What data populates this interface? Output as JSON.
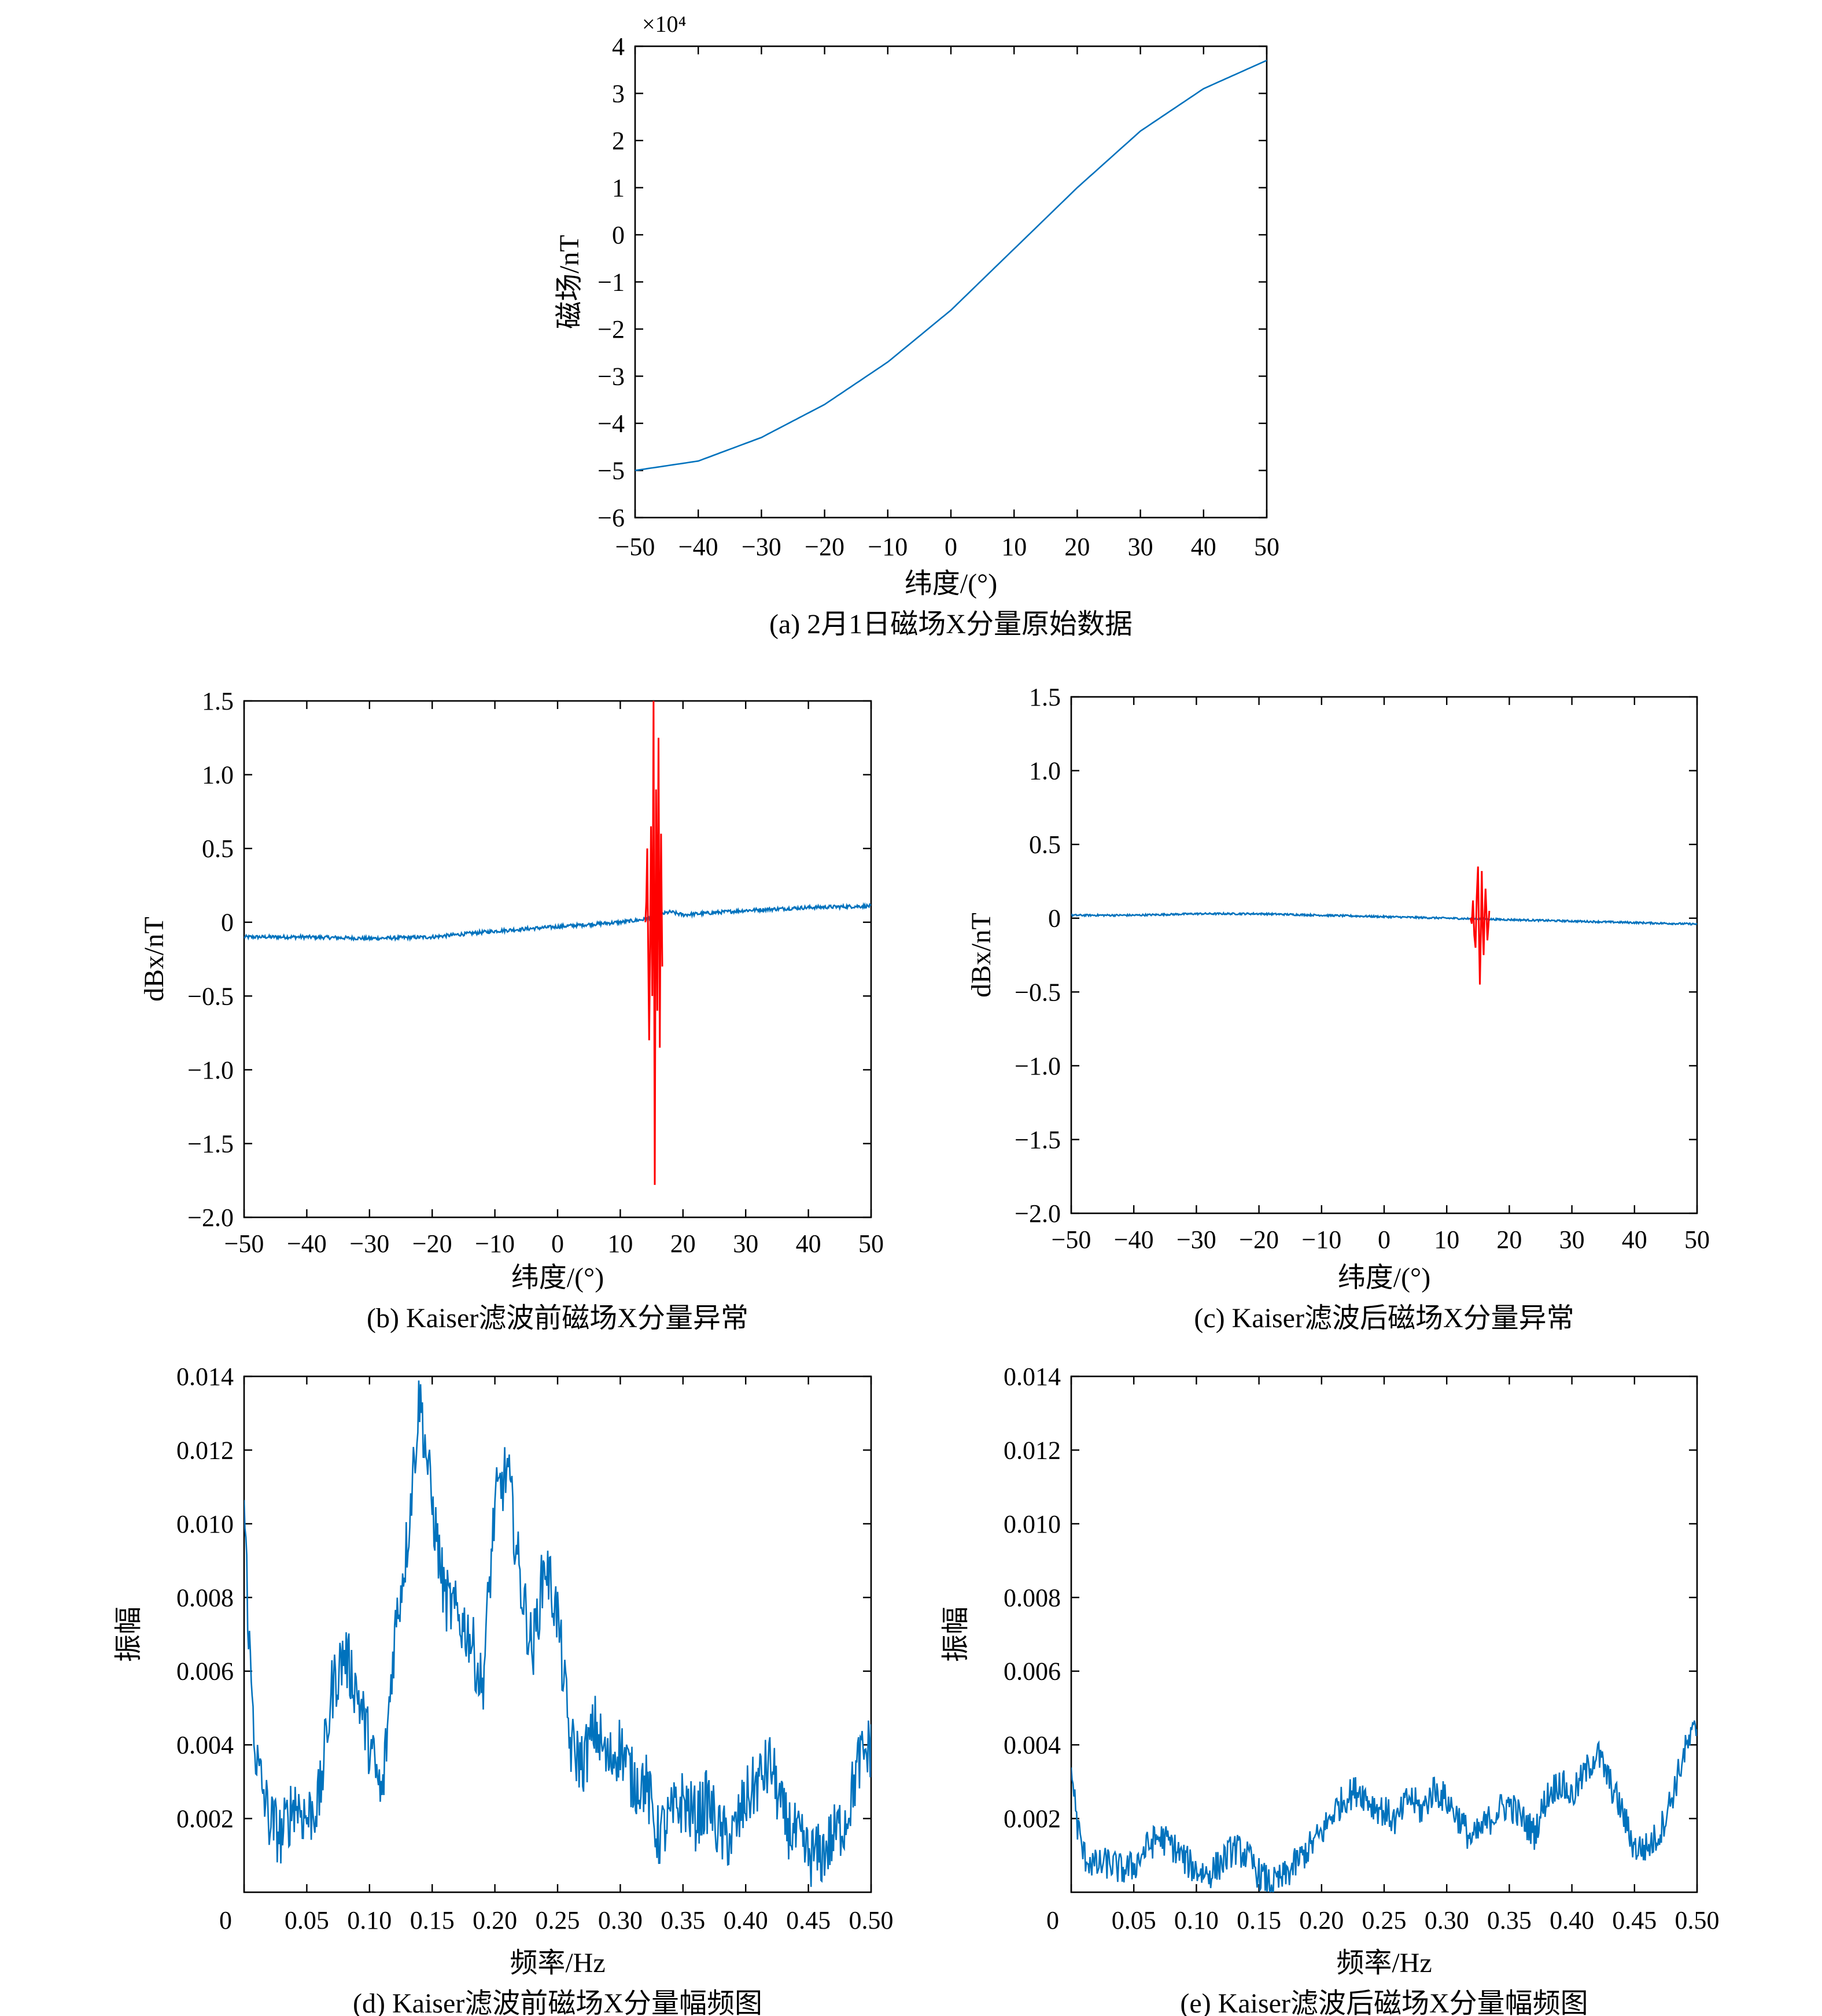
{
  "colors": {
    "series": "#0072BD",
    "anomaly": "#FF0000"
  },
  "chart_data": [
    {
      "id": "a",
      "type": "line",
      "caption": "(a) 2月1日磁场X分量原始数据",
      "xlabel": "纬度/(°)",
      "ylabel": "磁场/nT",
      "multiplier": "×10⁴",
      "xlim": [
        -50,
        50
      ],
      "ylim": [
        -6,
        4
      ],
      "xticks": [
        -50,
        -40,
        -30,
        -20,
        -10,
        0,
        10,
        20,
        30,
        40,
        50
      ],
      "xtick_labels": [
        "−50",
        "−40",
        "−30",
        "−20",
        "−10",
        "0",
        "10",
        "20",
        "30",
        "40",
        "50"
      ],
      "yticks": [
        -6,
        -5,
        -4,
        -3,
        -2,
        -1,
        0,
        1,
        2,
        3,
        4
      ],
      "ytick_labels": [
        "−6",
        "−5",
        "−4",
        "−3",
        "−2",
        "−1",
        "0",
        "1",
        "2",
        "3",
        "4"
      ],
      "series": [
        {
          "x": [
            -50,
            -40,
            -30,
            -20,
            -10,
            0,
            10,
            20,
            30,
            40,
            50
          ],
          "y": [
            -5.0,
            -4.8,
            -4.3,
            -3.6,
            -2.7,
            -1.6,
            -0.3,
            1.0,
            2.2,
            3.1,
            3.7
          ]
        }
      ]
    },
    {
      "id": "b",
      "type": "line",
      "caption": "(b) Kaiser滤波前磁场X分量异常",
      "xlabel": "纬度/(°)",
      "ylabel": "dBx/nT",
      "xlim": [
        -50,
        50
      ],
      "ylim": [
        -2.0,
        1.5
      ],
      "xticks": [
        -50,
        -40,
        -30,
        -20,
        -10,
        0,
        10,
        20,
        30,
        40,
        50
      ],
      "xtick_labels": [
        "−50",
        "−40",
        "−30",
        "−20",
        "−10",
        "0",
        "10",
        "20",
        "30",
        "40",
        "50"
      ],
      "yticks": [
        -2.0,
        -1.5,
        -1.0,
        -0.5,
        0,
        0.5,
        1.0,
        1.5
      ],
      "ytick_labels": [
        "−2.0",
        "−1.5",
        "−1.0",
        "−0.5",
        "0",
        "0.5",
        "1.0",
        "1.5"
      ],
      "series": [
        {
          "x": [
            -50,
            -40,
            -30,
            -20,
            -10,
            0,
            10,
            14,
            16,
            18,
            20,
            30,
            40,
            50
          ],
          "y": [
            -0.1,
            -0.1,
            -0.11,
            -0.1,
            -0.06,
            -0.03,
            0.0,
            0.02,
            0.05,
            0.07,
            0.05,
            0.08,
            0.1,
            0.11
          ]
        }
      ],
      "anomaly": {
        "x": [
          14.0,
          14.3,
          14.6,
          14.9,
          15.1,
          15.3,
          15.5,
          15.7,
          15.9,
          16.1,
          16.3,
          16.5,
          16.7
        ],
        "y": [
          0.0,
          0.5,
          -0.8,
          0.65,
          -0.5,
          1.5,
          -1.78,
          0.9,
          -0.6,
          1.25,
          -0.85,
          0.6,
          -0.3
        ]
      }
    },
    {
      "id": "c",
      "type": "line",
      "caption": "(c) Kaiser滤波后磁场X分量异常",
      "xlabel": "纬度/(°)",
      "ylabel": "dBx/nT",
      "xlim": [
        -50,
        50
      ],
      "ylim": [
        -2.0,
        1.5
      ],
      "xticks": [
        -50,
        -40,
        -30,
        -20,
        -10,
        0,
        10,
        20,
        30,
        40,
        50
      ],
      "xtick_labels": [
        "−50",
        "−40",
        "−30",
        "−20",
        "−10",
        "0",
        "10",
        "20",
        "30",
        "40",
        "50"
      ],
      "yticks": [
        -2.0,
        -1.5,
        -1.0,
        -0.5,
        0,
        0.5,
        1.0,
        1.5
      ],
      "ytick_labels": [
        "−2.0",
        "−1.5",
        "−1.0",
        "−0.5",
        "0",
        "0.5",
        "1.0",
        "1.5"
      ],
      "series": [
        {
          "x": [
            -50,
            -40,
            -30,
            -20,
            -10,
            0,
            10,
            20,
            30,
            40,
            50
          ],
          "y": [
            0.02,
            0.02,
            0.03,
            0.03,
            0.02,
            0.01,
            0.0,
            -0.01,
            -0.02,
            -0.03,
            -0.04
          ]
        }
      ],
      "anomaly": {
        "x": [
          13.8,
          14.2,
          14.6,
          15.0,
          15.3,
          15.6,
          15.9,
          16.2,
          16.5,
          16.8
        ],
        "y": [
          0.0,
          0.12,
          -0.2,
          0.35,
          -0.45,
          0.32,
          -0.25,
          0.2,
          -0.15,
          0.05
        ]
      }
    },
    {
      "id": "d",
      "type": "line",
      "caption": "(d) Kaiser滤波前磁场X分量幅频图",
      "xlabel": "频率/Hz",
      "ylabel": "振幅",
      "xlim": [
        0,
        0.5
      ],
      "ylim": [
        0,
        0.014
      ],
      "xticks": [
        0,
        0.05,
        0.1,
        0.15,
        0.2,
        0.25,
        0.3,
        0.35,
        0.4,
        0.45,
        0.5
      ],
      "xtick_labels": [
        "0",
        "0.05",
        "0.10",
        "0.15",
        "0.20",
        "0.25",
        "0.30",
        "0.35",
        "0.40",
        "0.45",
        "0.50"
      ],
      "yticks": [
        0.002,
        0.004,
        0.006,
        0.008,
        0.01,
        0.012,
        0.014
      ],
      "ytick_labels": [
        "0.002",
        "0.004",
        "0.006",
        "0.008",
        "0.010",
        "0.012",
        "0.014"
      ],
      "series": [
        {
          "x": [
            0.0,
            0.005,
            0.01,
            0.02,
            0.03,
            0.04,
            0.05,
            0.06,
            0.07,
            0.08,
            0.09,
            0.1,
            0.11,
            0.12,
            0.13,
            0.14,
            0.15,
            0.16,
            0.17,
            0.18,
            0.19,
            0.2,
            0.21,
            0.22,
            0.23,
            0.24,
            0.25,
            0.26,
            0.27,
            0.28,
            0.29,
            0.3,
            0.31,
            0.32,
            0.33,
            0.34,
            0.35,
            0.36,
            0.37,
            0.38,
            0.39,
            0.4,
            0.41,
            0.42,
            0.43,
            0.44,
            0.45,
            0.46,
            0.47,
            0.48,
            0.49,
            0.5
          ],
          "y": [
            0.0105,
            0.006,
            0.0035,
            0.002,
            0.0015,
            0.0025,
            0.002,
            0.0025,
            0.0055,
            0.0065,
            0.0055,
            0.004,
            0.0025,
            0.007,
            0.0095,
            0.0135,
            0.0105,
            0.008,
            0.0075,
            0.007,
            0.0055,
            0.0105,
            0.0115,
            0.0085,
            0.0065,
            0.009,
            0.0075,
            0.004,
            0.0035,
            0.0045,
            0.0035,
            0.004,
            0.003,
            0.003,
            0.0015,
            0.002,
            0.0025,
            0.002,
            0.0025,
            0.0015,
            0.0015,
            0.0025,
            0.003,
            0.0035,
            0.002,
            0.0015,
            0.001,
            0.001,
            0.0015,
            0.002,
            0.0035,
            0.004
          ]
        }
      ]
    },
    {
      "id": "e",
      "type": "line",
      "caption": "(e) Kaiser滤波后磁场X分量幅频图",
      "xlabel": "频率/Hz",
      "ylabel": "振幅",
      "xlim": [
        0,
        0.5
      ],
      "ylim": [
        0,
        0.014
      ],
      "xticks": [
        0,
        0.05,
        0.1,
        0.15,
        0.2,
        0.25,
        0.3,
        0.35,
        0.4,
        0.45,
        0.5
      ],
      "xtick_labels": [
        "0",
        "0.05",
        "0.10",
        "0.15",
        "0.20",
        "0.25",
        "0.30",
        "0.35",
        "0.40",
        "0.45",
        "0.50"
      ],
      "yticks": [
        0.002,
        0.004,
        0.006,
        0.008,
        0.01,
        0.012,
        0.014
      ],
      "ytick_labels": [
        "0.002",
        "0.004",
        "0.006",
        "0.008",
        "0.010",
        "0.012",
        "0.014"
      ],
      "series": [
        {
          "x": [
            0.0,
            0.005,
            0.01,
            0.02,
            0.03,
            0.04,
            0.05,
            0.06,
            0.07,
            0.08,
            0.09,
            0.1,
            0.11,
            0.12,
            0.13,
            0.14,
            0.15,
            0.16,
            0.17,
            0.18,
            0.19,
            0.2,
            0.21,
            0.22,
            0.23,
            0.24,
            0.25,
            0.26,
            0.27,
            0.28,
            0.29,
            0.3,
            0.31,
            0.32,
            0.33,
            0.34,
            0.35,
            0.36,
            0.37,
            0.38,
            0.39,
            0.4,
            0.41,
            0.42,
            0.43,
            0.44,
            0.45,
            0.46,
            0.47,
            0.48,
            0.49,
            0.5
          ],
          "y": [
            0.0034,
            0.0018,
            0.001,
            0.0007,
            0.0008,
            0.0006,
            0.0007,
            0.0012,
            0.0015,
            0.0013,
            0.0009,
            0.0006,
            0.0005,
            0.0008,
            0.0012,
            0.001,
            0.0005,
            0.0002,
            0.0004,
            0.0008,
            0.0012,
            0.0016,
            0.0022,
            0.0026,
            0.0028,
            0.0024,
            0.0022,
            0.0019,
            0.0026,
            0.0022,
            0.0028,
            0.0025,
            0.002,
            0.0014,
            0.0018,
            0.0022,
            0.0024,
            0.002,
            0.0016,
            0.0026,
            0.003,
            0.0026,
            0.0032,
            0.0038,
            0.003,
            0.0022,
            0.0012,
            0.0012,
            0.0016,
            0.0026,
            0.0038,
            0.0045
          ]
        }
      ]
    }
  ]
}
